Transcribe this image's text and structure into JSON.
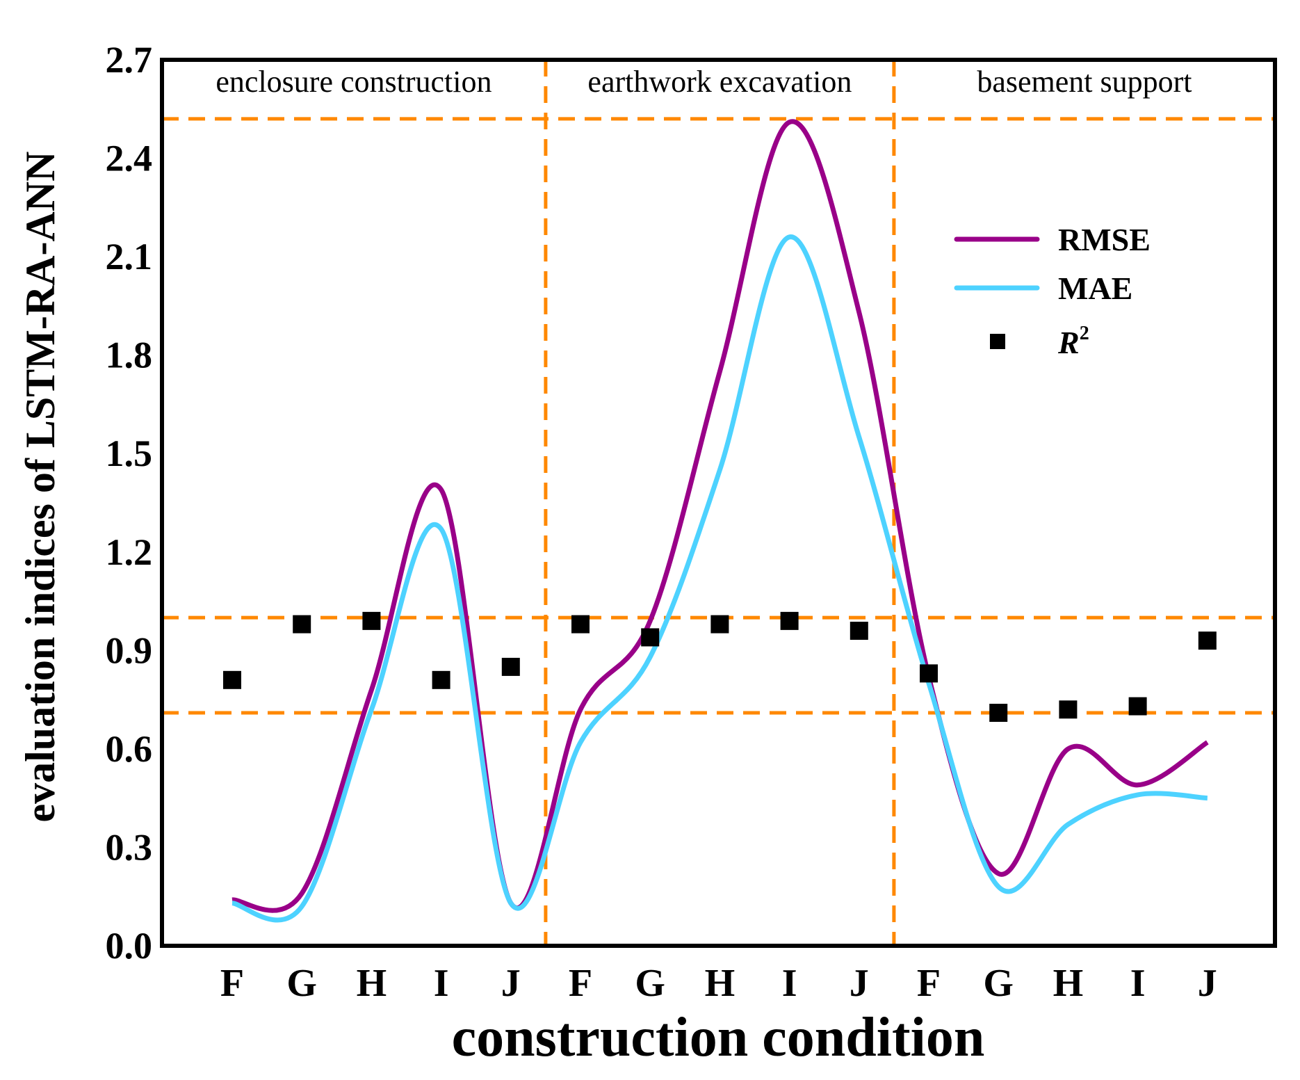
{
  "chart_data": {
    "type": "line",
    "title": "",
    "xlabel": "construction condition",
    "ylabel": "evaluation indices of LSTM-RA-ANN",
    "ylim": [
      0,
      2.7
    ],
    "yticks": [
      "0.0",
      "0.3",
      "0.6",
      "0.9",
      "1.2",
      "1.5",
      "1.8",
      "2.1",
      "2.4",
      "2.7"
    ],
    "categories": [
      "F",
      "G",
      "H",
      "I",
      "J",
      "F",
      "G",
      "H",
      "I",
      "J",
      "F",
      "G",
      "H",
      "I",
      "J"
    ],
    "regions": [
      "enclosure construction",
      "earthwork excavation",
      "basement support"
    ],
    "region_boundaries": [
      4.5,
      9.5
    ],
    "reference_lines": [
      2.52,
      1.0,
      0.71
    ],
    "legend_position": "upper-right",
    "series": [
      {
        "name": "RMSE",
        "kind": "line",
        "color": "#990088",
        "values": [
          0.14,
          0.16,
          0.78,
          1.39,
          0.13,
          0.72,
          0.99,
          1.75,
          2.51,
          1.93,
          0.82,
          0.22,
          0.6,
          0.49,
          0.62
        ]
      },
      {
        "name": "MAE",
        "kind": "line",
        "color": "#4dd2ff",
        "values": [
          0.13,
          0.12,
          0.72,
          1.27,
          0.13,
          0.62,
          0.88,
          1.45,
          2.16,
          1.55,
          0.8,
          0.18,
          0.37,
          0.46,
          0.45
        ]
      },
      {
        "name": "R",
        "sup": "2",
        "kind": "scatter",
        "color": "#000000",
        "values": [
          0.81,
          0.98,
          0.99,
          0.81,
          0.85,
          0.98,
          0.94,
          0.98,
          0.99,
          0.96,
          0.83,
          0.71,
          0.72,
          0.73,
          0.93
        ]
      }
    ],
    "refline_color": "#ff8800"
  }
}
